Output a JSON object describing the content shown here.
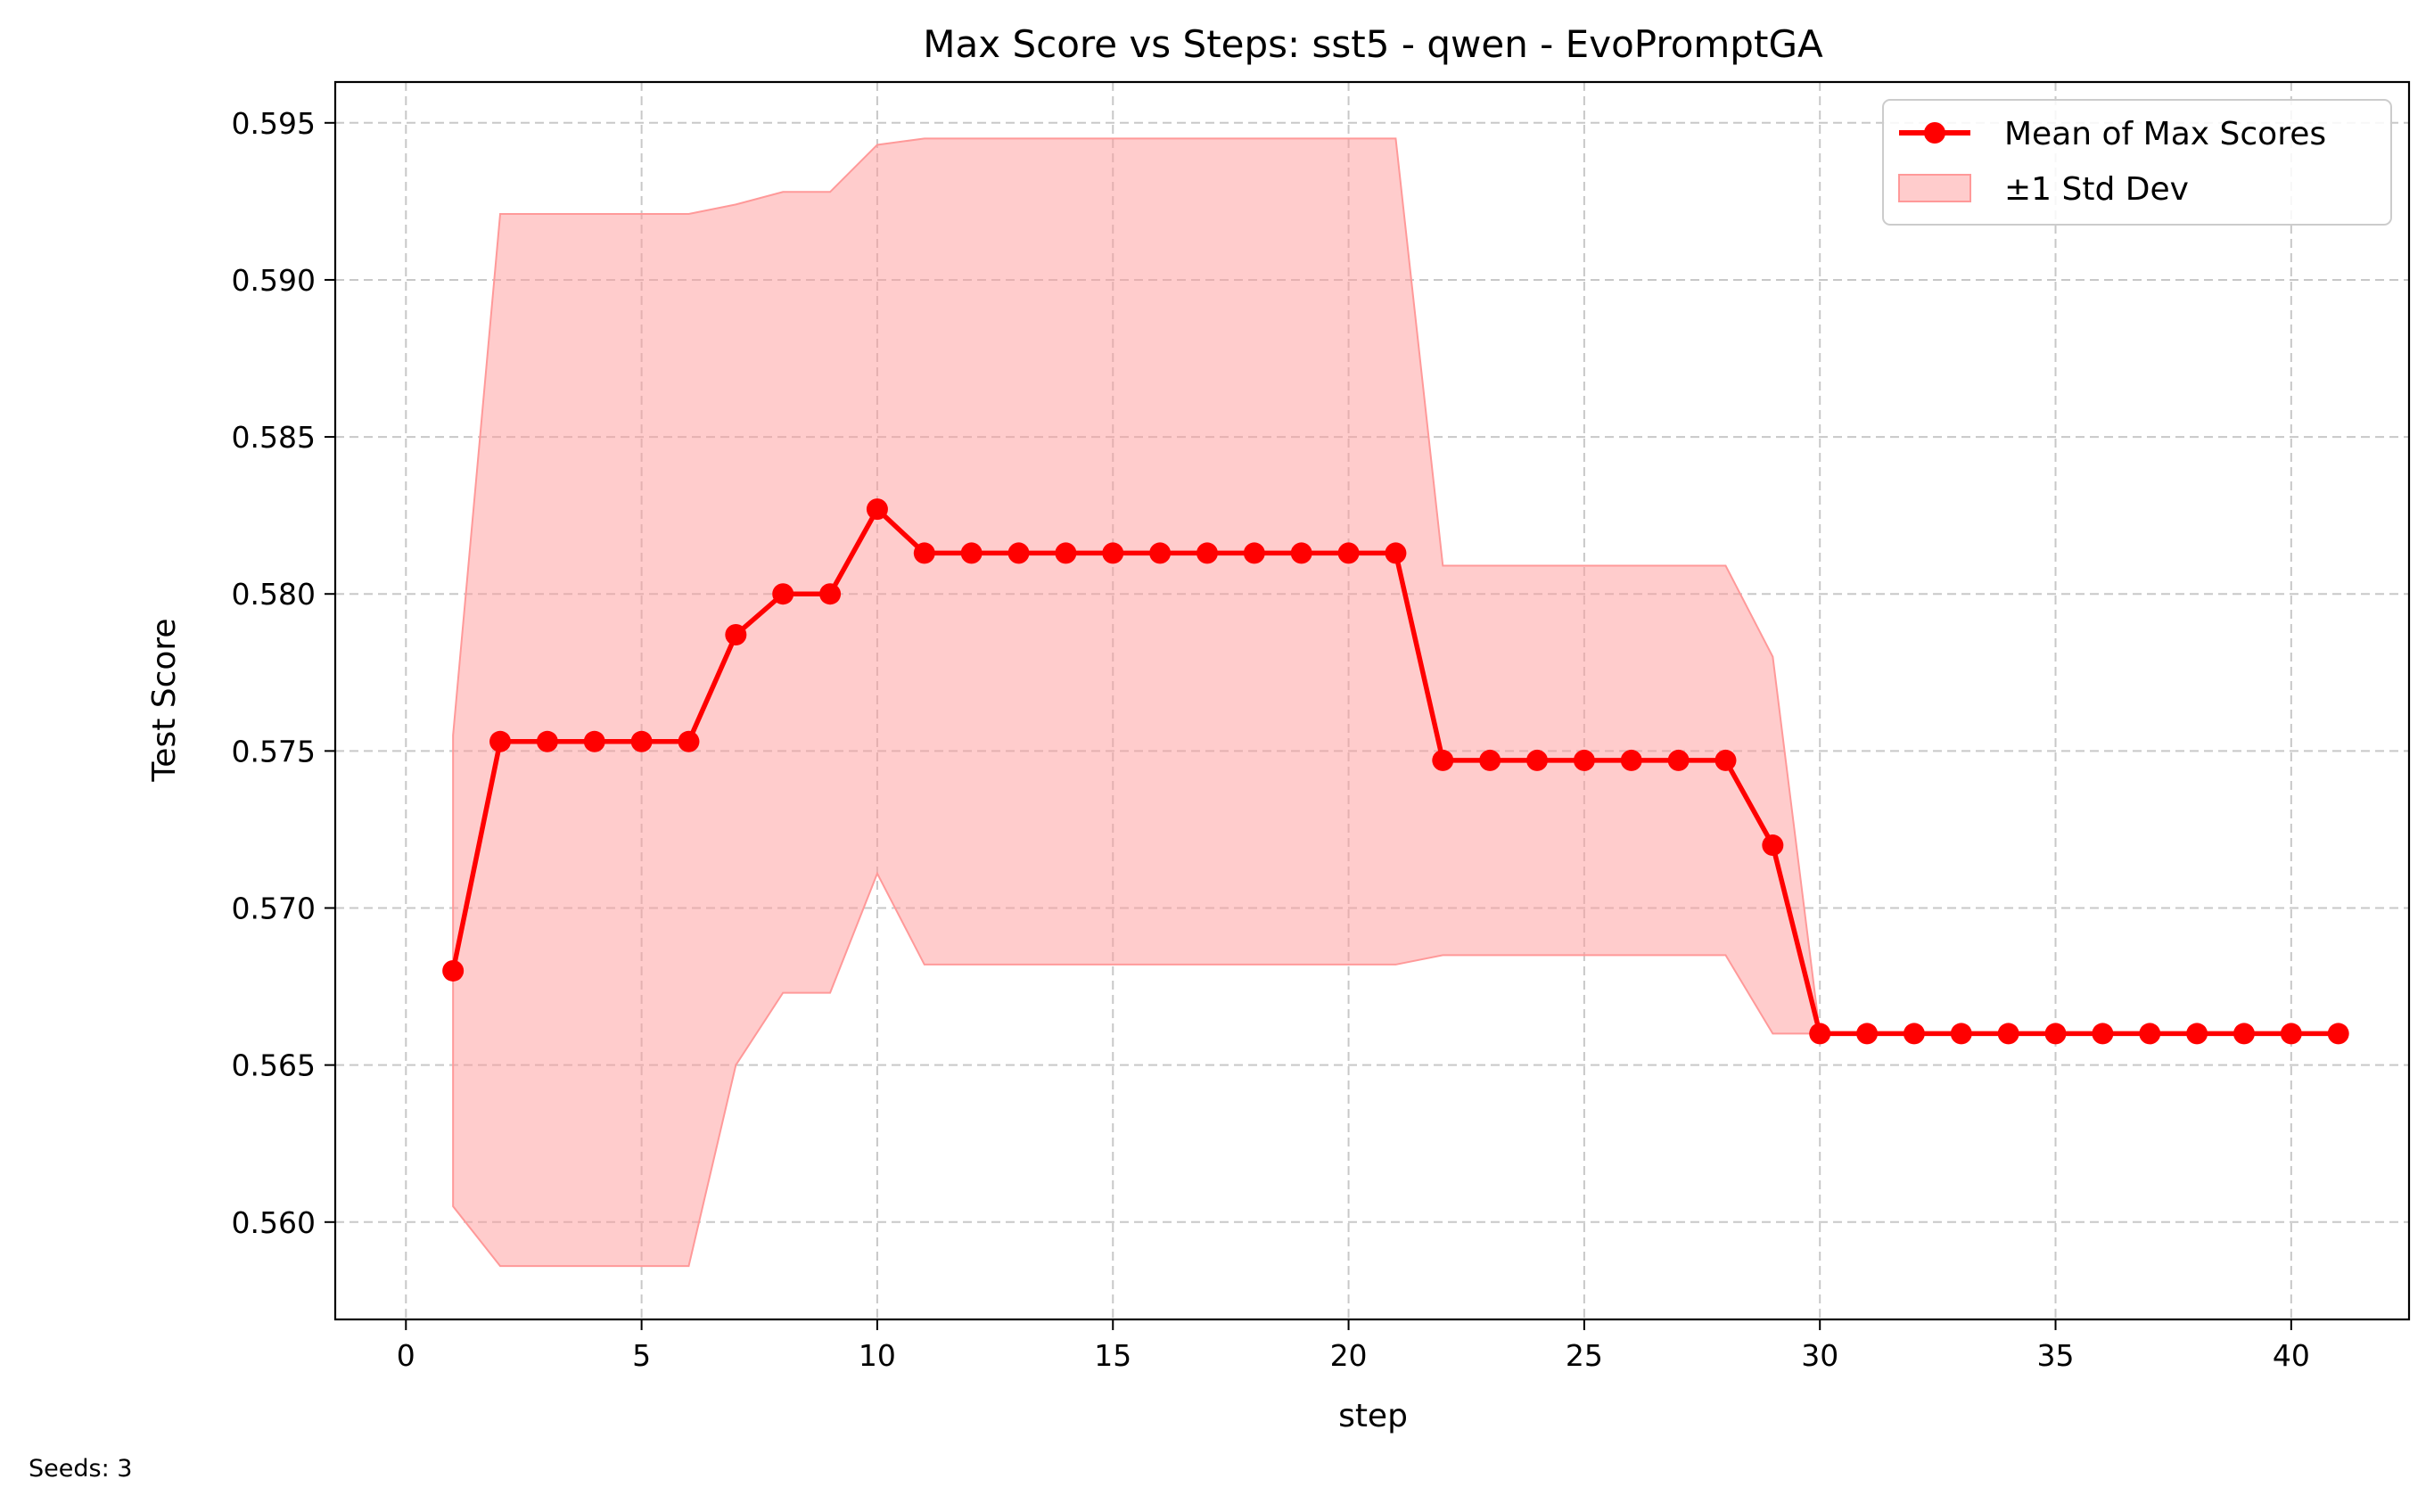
{
  "chart_data": {
    "type": "line",
    "title": "Max Score vs Steps: sst5 - qwen - EvoPromptGA",
    "xlabel": "step",
    "ylabel": "Test Score",
    "xlim": [
      -1.5,
      42.5
    ],
    "ylim": [
      0.5569,
      0.5963
    ],
    "xticks": [
      0,
      5,
      10,
      15,
      20,
      25,
      30,
      35,
      40
    ],
    "xtick_labels": [
      "0",
      "5",
      "10",
      "15",
      "20",
      "25",
      "30",
      "35",
      "40"
    ],
    "yticks": [
      0.56,
      0.565,
      0.57,
      0.575,
      0.58,
      0.585,
      0.59,
      0.595
    ],
    "ytick_labels": [
      "0.560",
      "0.565",
      "0.570",
      "0.575",
      "0.580",
      "0.585",
      "0.590",
      "0.595"
    ],
    "grid": true,
    "legend_position": "top-right",
    "series": [
      {
        "name": "Mean of Max Scores",
        "color": "#ff0000",
        "x": [
          1,
          2,
          3,
          4,
          5,
          6,
          7,
          8,
          9,
          10,
          11,
          12,
          13,
          14,
          15,
          16,
          17,
          18,
          19,
          20,
          21,
          22,
          23,
          24,
          25,
          26,
          27,
          28,
          29,
          30,
          31,
          32,
          33,
          34,
          35,
          36,
          37,
          38,
          39,
          40,
          41
        ],
        "values": [
          0.568,
          0.5753,
          0.5753,
          0.5753,
          0.5753,
          0.5753,
          0.5787,
          0.58,
          0.58,
          0.5827,
          0.5813,
          0.5813,
          0.5813,
          0.5813,
          0.5813,
          0.5813,
          0.5813,
          0.5813,
          0.5813,
          0.5813,
          0.5813,
          0.5747,
          0.5747,
          0.5747,
          0.5747,
          0.5747,
          0.5747,
          0.5747,
          0.572,
          0.566,
          0.566,
          0.566,
          0.566,
          0.566,
          0.566,
          0.566,
          0.566,
          0.566,
          0.566,
          0.566,
          0.566
        ]
      }
    ],
    "band": {
      "name": "±1 Std Dev",
      "color": "#ff9999",
      "x": [
        1,
        2,
        3,
        4,
        5,
        6,
        7,
        8,
        9,
        10,
        11,
        12,
        13,
        14,
        15,
        16,
        17,
        18,
        19,
        20,
        21,
        22,
        23,
        24,
        25,
        26,
        27,
        28,
        29,
        30,
        31,
        32,
        33,
        34,
        35,
        36,
        37,
        38,
        39,
        40,
        41
      ],
      "upper": [
        0.5755,
        0.5921,
        0.5921,
        0.5921,
        0.5921,
        0.5921,
        0.5924,
        0.5928,
        0.5928,
        0.5943,
        0.5945,
        0.5945,
        0.5945,
        0.5945,
        0.5945,
        0.5945,
        0.5945,
        0.5945,
        0.5945,
        0.5945,
        0.5945,
        0.5809,
        0.5809,
        0.5809,
        0.5809,
        0.5809,
        0.5809,
        0.5809,
        0.578,
        0.566,
        0.566,
        0.566,
        0.566,
        0.566,
        0.566,
        0.566,
        0.566,
        0.566,
        0.566,
        0.566,
        0.566
      ],
      "lower": [
        0.5605,
        0.5586,
        0.5586,
        0.5586,
        0.5586,
        0.5586,
        0.565,
        0.5673,
        0.5673,
        0.5711,
        0.5682,
        0.5682,
        0.5682,
        0.5682,
        0.5682,
        0.5682,
        0.5682,
        0.5682,
        0.5682,
        0.5682,
        0.5682,
        0.5685,
        0.5685,
        0.5685,
        0.5685,
        0.5685,
        0.5685,
        0.5685,
        0.566,
        0.566,
        0.566,
        0.566,
        0.566,
        0.566,
        0.566,
        0.566,
        0.566,
        0.566,
        0.566,
        0.566,
        0.566
      ]
    },
    "footnote": "Seeds: 3"
  }
}
